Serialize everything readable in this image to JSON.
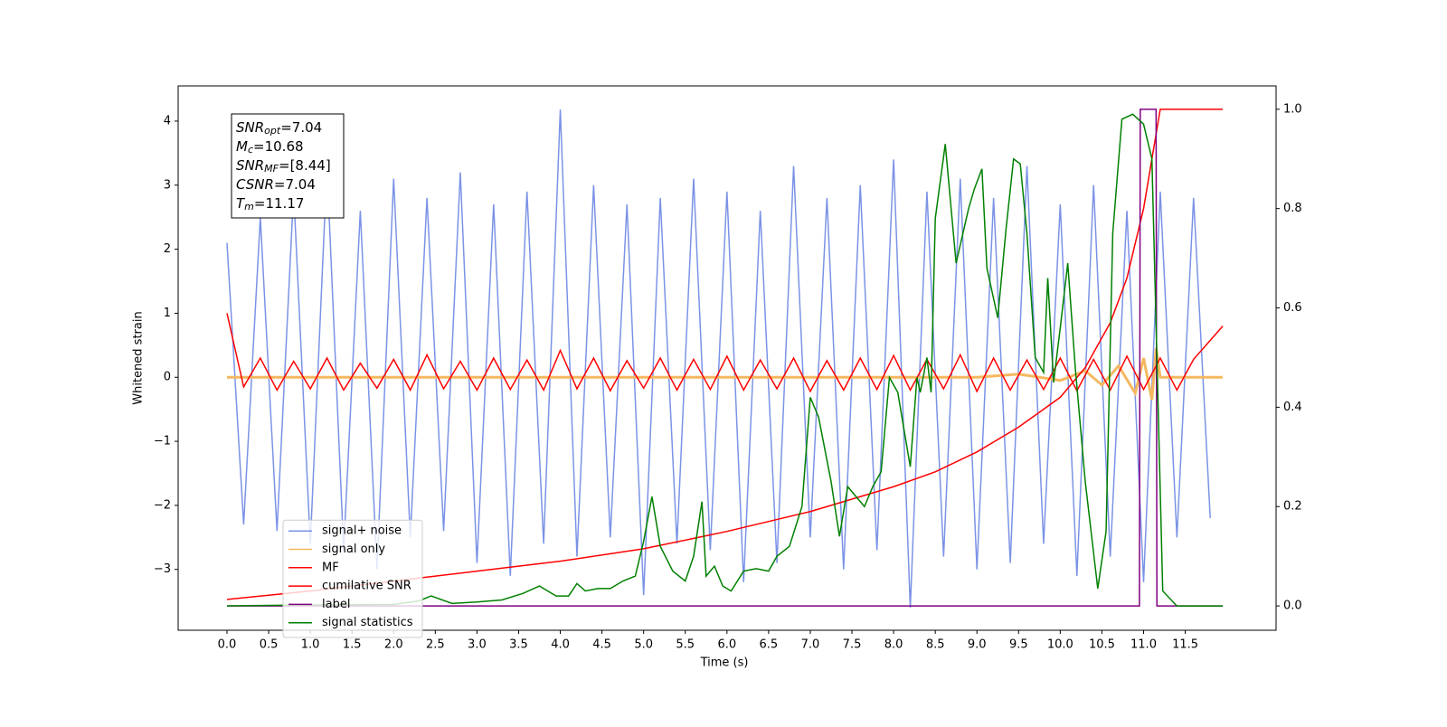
{
  "chart_data": {
    "type": "line",
    "xlabel": "Time (s)",
    "ylabel": "Whitened strain",
    "xlim": [
      -0.586,
      12.59
    ],
    "ylim": [
      -3.95,
      4.55
    ],
    "y2lim": [
      -0.049,
      1.047
    ],
    "xticks": [
      {
        "value": 0,
        "label": "0.0"
      },
      0.5,
      {
        "value": 1,
        "label": "1.0"
      },
      1.5,
      {
        "value": 2,
        "label": "2.0"
      },
      2.5,
      {
        "value": 3,
        "label": "3.0"
      },
      3.5,
      {
        "value": 4,
        "label": "4.0"
      },
      4.5,
      {
        "value": 5,
        "label": "5.0"
      },
      5.5,
      {
        "value": 6,
        "label": "6.0"
      },
      6.5,
      {
        "value": 7,
        "label": "7.0"
      },
      7.5,
      {
        "value": 8,
        "label": "8.0"
      },
      8.5,
      {
        "value": 9,
        "label": "9.0"
      },
      9.5,
      {
        "value": 10,
        "label": "10.0"
      },
      10.5,
      {
        "value": 11,
        "label": "11.0"
      },
      11.5
    ],
    "yticks": [
      {
        "value": -3,
        "label": "−3"
      },
      {
        "value": -2,
        "label": "−2"
      },
      {
        "value": -1,
        "label": "−1"
      },
      0,
      1,
      2,
      3,
      4
    ],
    "y2ticks": [
      {
        "value": 0,
        "label": "0.0"
      },
      0.2,
      0.4,
      0.6,
      0.8,
      {
        "value": 1,
        "label": "1.0"
      }
    ],
    "legend": "lower left",
    "annotation": [
      {
        "base": "SNR",
        "sub": "opt",
        "text": "=7.04"
      },
      {
        "base": "M",
        "sub": "c",
        "text": "=10.68"
      },
      {
        "base": "SNR",
        "sub": "MF",
        "text": "=[8.44]"
      },
      {
        "base": "CSNR",
        "text": "=7.04"
      },
      {
        "base": "T",
        "sub": "m",
        "text": "=11.17"
      }
    ],
    "series": [
      {
        "name": "signal+ noise",
        "color": "#7b93e6",
        "width": 1.5,
        "x": [
          0,
          0.2,
          0.4,
          0.6,
          0.8,
          1,
          1.2,
          1.4,
          1.6,
          1.8,
          2,
          2.2,
          2.4,
          2.6,
          2.8,
          3,
          3.2,
          3.4,
          3.6,
          3.8,
          4,
          4.2,
          4.4,
          4.6,
          4.8,
          5,
          5.2,
          5.4,
          5.6,
          5.8,
          6,
          6.2,
          6.4,
          6.6,
          6.8,
          7,
          7.2,
          7.4,
          7.6,
          7.8,
          8,
          8.2,
          8.4,
          8.6,
          8.8,
          9,
          9.2,
          9.4,
          9.6,
          9.8,
          10,
          10.2,
          10.4,
          10.6,
          10.8,
          11,
          11.2,
          11.4,
          11.6,
          11.8
        ],
        "values": [
          2.1,
          -2.3,
          2.5,
          -2.4,
          2.9,
          -2.6,
          3.3,
          -2.7,
          2.6,
          -3.0,
          3.1,
          -2.5,
          2.8,
          -2.4,
          3.2,
          -2.9,
          2.7,
          -3.1,
          2.9,
          -2.6,
          4.18,
          -2.8,
          3.0,
          -2.5,
          2.7,
          -3.4,
          2.8,
          -2.6,
          3.1,
          -2.7,
          2.9,
          -3.2,
          2.6,
          -2.9,
          3.3,
          -2.5,
          2.8,
          -3.0,
          3.0,
          -2.7,
          3.4,
          -3.6,
          2.9,
          -2.8,
          3.1,
          -3.0,
          2.8,
          -2.9,
          3.3,
          -2.6,
          2.7,
          -3.1,
          3.0,
          -2.8,
          2.6,
          -3.2,
          2.9,
          -2.5,
          2.8,
          -2.2
        ]
      },
      {
        "name": "signal only",
        "color": "#f5b860",
        "width": 3,
        "x": [
          0,
          9,
          9.5,
          10,
          10.3,
          10.5,
          10.7,
          10.9,
          11,
          11.1,
          11.15,
          11.2,
          11.95
        ],
        "values": [
          0,
          0,
          0.05,
          -0.05,
          0.1,
          -0.12,
          0.18,
          -0.25,
          0.3,
          -0.35,
          0.45,
          0,
          0
        ]
      },
      {
        "name": "MF",
        "color": "#ff0000",
        "width": 1.5,
        "x": [
          0,
          0.2,
          0.4,
          0.6,
          0.8,
          1,
          1.2,
          1.4,
          1.6,
          1.8,
          2,
          2.2,
          2.4,
          2.6,
          2.8,
          3,
          3.2,
          3.4,
          3.6,
          3.8,
          4,
          4.2,
          4.4,
          4.6,
          4.8,
          5,
          5.2,
          5.4,
          5.6,
          5.8,
          6,
          6.2,
          6.4,
          6.6,
          6.8,
          7,
          7.2,
          7.4,
          7.6,
          7.8,
          8,
          8.2,
          8.4,
          8.6,
          8.8,
          9,
          9.2,
          9.4,
          9.6,
          9.8,
          10,
          10.2,
          10.4,
          10.6,
          10.8,
          11,
          11.2,
          11.4,
          11.6,
          11.95
        ],
        "values": [
          1.0,
          -0.15,
          0.3,
          -0.2,
          0.25,
          -0.18,
          0.3,
          -0.2,
          0.22,
          -0.17,
          0.28,
          -0.2,
          0.35,
          -0.18,
          0.25,
          -0.2,
          0.3,
          -0.19,
          0.27,
          -0.2,
          0.42,
          -0.18,
          0.3,
          -0.21,
          0.26,
          -0.17,
          0.3,
          -0.2,
          0.28,
          -0.19,
          0.33,
          -0.2,
          0.27,
          -0.18,
          0.3,
          -0.22,
          0.26,
          -0.2,
          0.3,
          -0.19,
          0.34,
          -0.2,
          0.28,
          -0.18,
          0.35,
          -0.22,
          0.3,
          -0.2,
          0.27,
          -0.19,
          0.3,
          -0.21,
          0.28,
          -0.2,
          0.33,
          -0.19,
          0.3,
          -0.2,
          0.28,
          0.8
        ]
      },
      {
        "name": "cumilative SNR",
        "color": "#ff0000",
        "width": 1.5,
        "axis": "y2",
        "x": [
          0,
          1,
          2,
          3,
          4,
          5,
          6,
          7,
          8,
          8.5,
          9,
          9.5,
          10,
          10.3,
          10.6,
          10.8,
          11,
          11.1,
          11.2,
          11.95
        ],
        "values": [
          0.013,
          0.03,
          0.05,
          0.07,
          0.09,
          0.115,
          0.15,
          0.19,
          0.24,
          0.27,
          0.31,
          0.36,
          0.42,
          0.48,
          0.57,
          0.66,
          0.8,
          0.9,
          1.0,
          1.0
        ]
      },
      {
        "name": "label",
        "color": "#800080",
        "width": 1.5,
        "axis": "y2",
        "x": [
          0,
          10.95,
          10.96,
          11.15,
          11.16,
          11.95
        ],
        "values": [
          0,
          0,
          1,
          1,
          0,
          0
        ]
      },
      {
        "name": "signal statistics",
        "color": "#008000",
        "width": 1.5,
        "axis": "y2",
        "x": [
          0,
          1,
          2,
          2.3,
          2.45,
          2.7,
          3,
          3.3,
          3.55,
          3.75,
          3.95,
          4.1,
          4.2,
          4.3,
          4.45,
          4.6,
          4.75,
          4.9,
          5,
          5.1,
          5.2,
          5.35,
          5.5,
          5.6,
          5.7,
          5.75,
          5.85,
          5.95,
          6.05,
          6.2,
          6.35,
          6.5,
          6.6,
          6.75,
          6.9,
          7,
          7.1,
          7.25,
          7.35,
          7.45,
          7.55,
          7.65,
          7.75,
          7.85,
          7.95,
          8.05,
          8.2,
          8.28,
          8.32,
          8.4,
          8.45,
          8.5,
          8.62,
          8.75,
          8.9,
          8.97,
          9.06,
          9.12,
          9.25,
          9.35,
          9.44,
          9.52,
          9.6,
          9.7,
          9.8,
          9.85,
          9.92,
          10,
          10.09,
          10.18,
          10.3,
          10.45,
          10.55,
          10.63,
          10.74,
          10.87,
          11,
          11.1,
          11.23,
          11.4,
          11.95
        ],
        "values": [
          0,
          0.002,
          0.003,
          0.01,
          0.02,
          0.005,
          0.008,
          0.012,
          0.025,
          0.04,
          0.02,
          0.02,
          0.045,
          0.03,
          0.035,
          0.035,
          0.05,
          0.06,
          0.13,
          0.22,
          0.12,
          0.07,
          0.05,
          0.1,
          0.21,
          0.06,
          0.08,
          0.04,
          0.03,
          0.07,
          0.075,
          0.07,
          0.1,
          0.12,
          0.2,
          0.42,
          0.38,
          0.25,
          0.14,
          0.24,
          0.22,
          0.2,
          0.24,
          0.27,
          0.46,
          0.43,
          0.28,
          0.46,
          0.43,
          0.5,
          0.43,
          0.78,
          0.93,
          0.69,
          0.8,
          0.84,
          0.88,
          0.68,
          0.58,
          0.76,
          0.9,
          0.89,
          0.75,
          0.5,
          0.47,
          0.66,
          0.45,
          0.56,
          0.69,
          0.48,
          0.25,
          0.035,
          0.15,
          0.75,
          0.98,
          0.99,
          0.97,
          0.9,
          0.03,
          0.0,
          0.0
        ]
      }
    ]
  }
}
